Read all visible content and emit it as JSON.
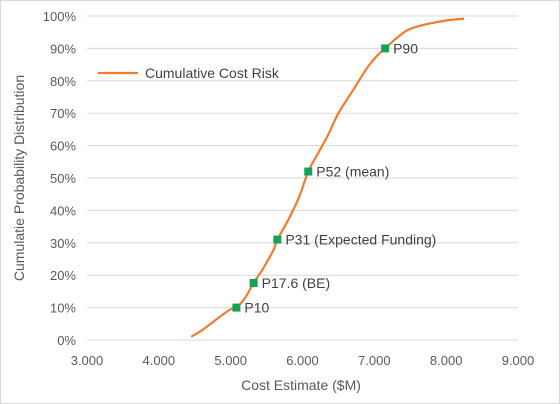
{
  "chart_data": {
    "type": "line",
    "title": "",
    "xlabel": "Cost Estimate ($M)",
    "ylabel": "Cumulatie Probability Distribution",
    "xlim": [
      3000,
      9000
    ],
    "ylim": [
      0,
      100
    ],
    "x_ticks": [
      3000,
      4000,
      5000,
      6000,
      7000,
      8000,
      9000
    ],
    "x_tick_labels": [
      "3.000",
      "4.000",
      "5.000",
      "6.000",
      "7.000",
      "8.000",
      "9.000"
    ],
    "y_ticks": [
      0,
      10,
      20,
      30,
      40,
      50,
      60,
      70,
      80,
      90,
      100
    ],
    "y_tick_labels": [
      "0%",
      "10%",
      "20%",
      "30%",
      "40%",
      "50%",
      "60%",
      "70%",
      "80%",
      "90%",
      "100%"
    ],
    "grid": "horizontal",
    "legend_position": "upper-left",
    "series": [
      {
        "name": "Cumulative Cost Risk",
        "color": "#ed7d31",
        "x": [
          4450,
          4600,
          4750,
          4900,
          5000,
          5080,
          5200,
          5320,
          5450,
          5600,
          5650,
          5800,
          5950,
          6080,
          6200,
          6350,
          6500,
          6700,
          6900,
          7050,
          7150,
          7300,
          7450,
          7600,
          7800,
          8000,
          8250
        ],
        "y": [
          1,
          3,
          5.5,
          8,
          9.5,
          10,
          13,
          17.6,
          22,
          28,
          31,
          37,
          44,
          52,
          57,
          63,
          70,
          77,
          84,
          88,
          90,
          93,
          95.5,
          96.8,
          97.8,
          98.6,
          99.2
        ]
      }
    ],
    "markers": [
      {
        "label": "P10",
        "x": 5080,
        "y": 10
      },
      {
        "label": "P17.6 (BE)",
        "x": 5320,
        "y": 17.6
      },
      {
        "label": "P31 (Expected Funding)",
        "x": 5650,
        "y": 31
      },
      {
        "label": "P52 (mean)",
        "x": 6080,
        "y": 52
      },
      {
        "label": "P90",
        "x": 7150,
        "y": 90
      }
    ],
    "marker_color": "#13a354"
  }
}
